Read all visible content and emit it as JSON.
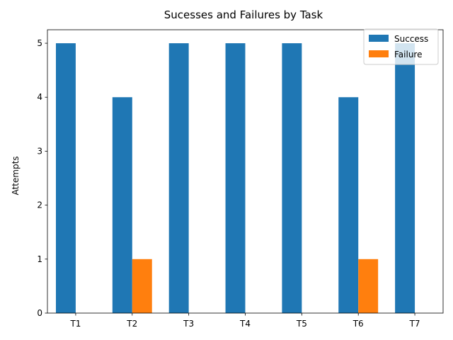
{
  "chart_data": {
    "type": "bar",
    "title": "Sucesses and Failures by Task",
    "xlabel": "",
    "ylabel": "Attempts",
    "categories": [
      "T1",
      "T2",
      "T3",
      "T4",
      "T5",
      "T6",
      "T7"
    ],
    "series": [
      {
        "name": "Success",
        "values": [
          5,
          4,
          5,
          5,
          5,
          4,
          5
        ],
        "color": "#1f77b4"
      },
      {
        "name": "Failure",
        "values": [
          0,
          1,
          0,
          0,
          0,
          1,
          0
        ],
        "color": "#ff7f0e"
      }
    ],
    "ylim": [
      0,
      5.25
    ],
    "yticks": [
      0,
      1,
      2,
      3,
      4,
      5
    ],
    "grid": false,
    "legend_position": "top-right"
  }
}
